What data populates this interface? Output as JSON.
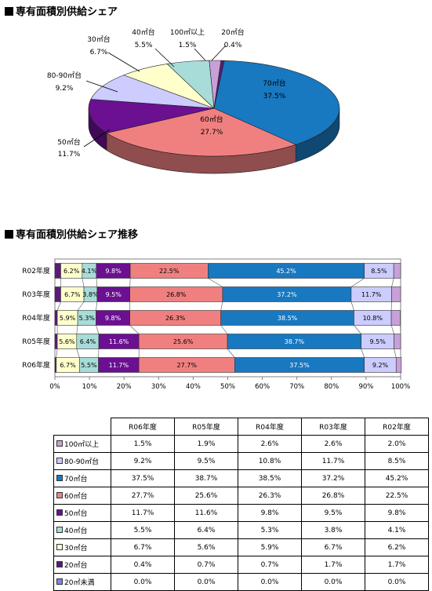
{
  "pie_title": "専有面積別供給シェア",
  "bar_title": "専有面積別供給シェア推移",
  "colors": {
    "20m_miman": "#7f7fff",
    "20m": "#5a1a7a",
    "30m": "#ffffcc",
    "40m": "#a8dcd8",
    "50m": "#6a1090",
    "60m": "#f08080",
    "70m": "#1878c0",
    "80_90m": "#ccccff",
    "100m": "#c8a0d8"
  },
  "chart_data": [
    {
      "type": "pie",
      "slices": [
        {
          "label": "70㎡台",
          "value": 37.5,
          "display": "37.5%"
        },
        {
          "label": "60㎡台",
          "value": 27.7,
          "display": "27.7%"
        },
        {
          "label": "50㎡台",
          "value": 11.7,
          "display": "11.7%"
        },
        {
          "label": "80-90㎡台",
          "value": 9.2,
          "display": "9.2%"
        },
        {
          "label": "30㎡台",
          "value": 6.7,
          "display": "6.7%"
        },
        {
          "label": "40㎡台",
          "value": 5.5,
          "display": "5.5%"
        },
        {
          "label": "100㎡以上",
          "value": 1.5,
          "display": "1.5%"
        },
        {
          "label": "20㎡台",
          "value": 0.4,
          "display": "0.4%"
        }
      ]
    },
    {
      "type": "bar",
      "stacked": "100%",
      "orientation": "horizontal",
      "categories": [
        "R02年度",
        "R03年度",
        "R04年度",
        "R05年度",
        "R06年度"
      ],
      "series": [
        {
          "name": "20㎡未満",
          "key": "20m_miman",
          "values": [
            0.0,
            0.0,
            0.0,
            0.0,
            0.0
          ]
        },
        {
          "name": "20㎡台",
          "key": "20m",
          "values": [
            1.7,
            1.7,
            0.7,
            0.7,
            0.4
          ]
        },
        {
          "name": "30㎡台",
          "key": "30m",
          "values": [
            6.2,
            6.7,
            5.9,
            5.6,
            6.7
          ]
        },
        {
          "name": "40㎡台",
          "key": "40m",
          "values": [
            4.1,
            3.8,
            5.3,
            6.4,
            5.5
          ]
        },
        {
          "name": "50㎡台",
          "key": "50m",
          "values": [
            9.8,
            9.5,
            9.8,
            11.6,
            11.7
          ]
        },
        {
          "name": "60㎡台",
          "key": "60m",
          "values": [
            22.5,
            26.8,
            26.3,
            25.6,
            27.7
          ]
        },
        {
          "name": "70㎡台",
          "key": "70m",
          "values": [
            45.2,
            37.2,
            38.5,
            38.7,
            37.5
          ]
        },
        {
          "name": "80-90㎡台",
          "key": "80_90m",
          "values": [
            8.5,
            11.7,
            10.8,
            9.5,
            9.2
          ]
        },
        {
          "name": "100㎡以上",
          "key": "100m",
          "values": [
            2.0,
            2.6,
            2.6,
            1.9,
            1.5
          ]
        }
      ],
      "xlim": [
        0,
        100
      ],
      "xticks": [
        "0%",
        "10%",
        "20%",
        "30%",
        "40%",
        "50%",
        "60%",
        "70%",
        "80%",
        "90%",
        "100%"
      ],
      "grid": false
    }
  ],
  "table": {
    "columns": [
      "R06年度",
      "R05年度",
      "R04年度",
      "R03年度",
      "R02年度"
    ],
    "rows": [
      {
        "label": "100㎡以上",
        "key": "100m",
        "values": [
          "1.5%",
          "1.9%",
          "2.6%",
          "2.6%",
          "2.0%"
        ]
      },
      {
        "label": "80-90㎡台",
        "key": "80_90m",
        "values": [
          "9.2%",
          "9.5%",
          "10.8%",
          "11.7%",
          "8.5%"
        ]
      },
      {
        "label": "70㎡台",
        "key": "70m",
        "values": [
          "37.5%",
          "38.7%",
          "38.5%",
          "37.2%",
          "45.2%"
        ]
      },
      {
        "label": "60㎡台",
        "key": "60m",
        "values": [
          "27.7%",
          "25.6%",
          "26.3%",
          "26.8%",
          "22.5%"
        ]
      },
      {
        "label": "50㎡台",
        "key": "50m",
        "values": [
          "11.7%",
          "11.6%",
          "9.8%",
          "9.5%",
          "9.8%"
        ]
      },
      {
        "label": "40㎡台",
        "key": "40m",
        "values": [
          "5.5%",
          "6.4%",
          "5.3%",
          "3.8%",
          "4.1%"
        ]
      },
      {
        "label": "30㎡台",
        "key": "30m",
        "values": [
          "6.7%",
          "5.6%",
          "5.9%",
          "6.7%",
          "6.2%"
        ]
      },
      {
        "label": "20㎡台",
        "key": "20m",
        "values": [
          "0.4%",
          "0.7%",
          "0.7%",
          "1.7%",
          "1.7%"
        ]
      },
      {
        "label": "20㎡未満",
        "key": "20m_miman",
        "values": [
          "0.0%",
          "0.0%",
          "0.0%",
          "0.0%",
          "0.0%"
        ]
      }
    ]
  }
}
